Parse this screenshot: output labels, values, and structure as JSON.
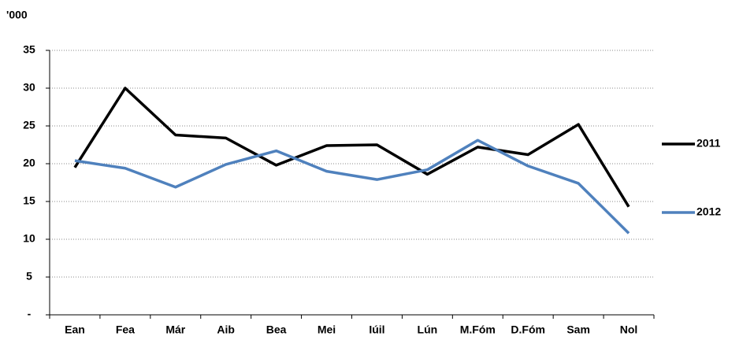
{
  "chart_data": {
    "type": "line",
    "y_label": "'000",
    "categories": [
      "Ean",
      "Fea",
      "Már",
      "Aib",
      "Bea",
      "Mei",
      "Iúil",
      "Lún",
      "M.Fóm",
      "D.Fóm",
      "Sam",
      "Nol"
    ],
    "series": [
      {
        "name": "2011",
        "color": "#000000",
        "values": [
          19.5,
          30.0,
          23.8,
          23.4,
          19.8,
          22.4,
          22.5,
          18.6,
          22.2,
          21.2,
          25.2,
          14.3
        ]
      },
      {
        "name": "2012",
        "color": "#4f81bd",
        "values": [
          20.4,
          19.4,
          16.9,
          19.9,
          21.7,
          19.0,
          17.9,
          19.2,
          23.1,
          19.7,
          17.4,
          10.8
        ]
      }
    ],
    "ylim": [
      0,
      35
    ],
    "yticks": [
      {
        "value": 0,
        "label": "-"
      },
      5,
      10,
      15,
      20,
      25,
      30,
      35
    ],
    "grid": true,
    "legend": "right"
  }
}
